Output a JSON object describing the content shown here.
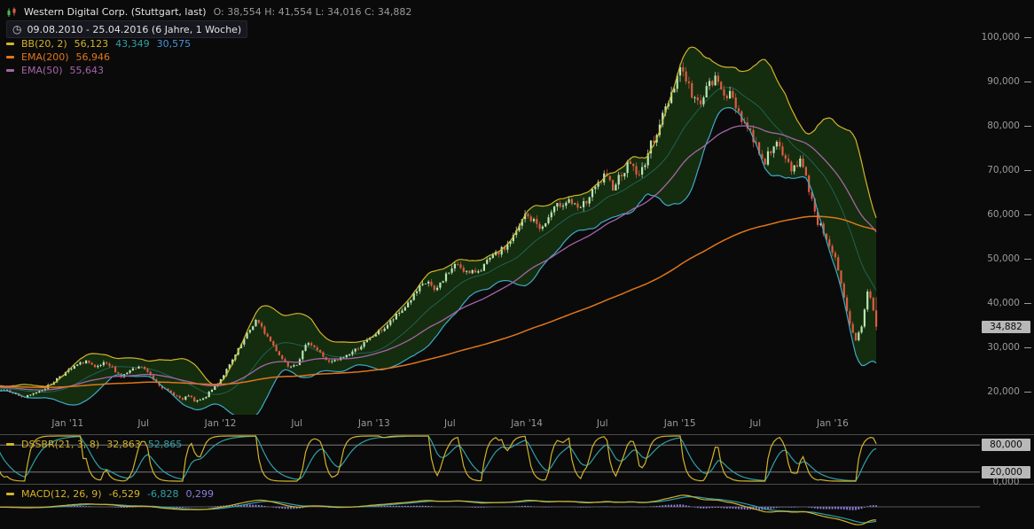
{
  "header": {
    "title": "Western Digital Corp. (Stuttgart, last)",
    "ohlc": "O: 38,554  H: 41,554  L: 34,016  C: 34,882",
    "range": "09.08.2010 - 25.04.2016 (6 Jahre, 1 Woche)"
  },
  "icons": {
    "clock": "◷"
  },
  "legend": {
    "bb": {
      "label": "BB(20, 2)",
      "upper": "56,123",
      "middle": "43,349",
      "lower": "30,575"
    },
    "ema200": {
      "label": "EMA(200)",
      "value": "56,946"
    },
    "ema50": {
      "label": "EMA(50)",
      "value": "55,643"
    }
  },
  "panels": {
    "dssbr": {
      "label": "DSSBR(21, 3, 8)",
      "v1": "32,863",
      "v2": "52,865"
    },
    "macd": {
      "label": "MACD(12, 26, 9)",
      "v1": "-6,529",
      "v2": "-6,828",
      "v3": "0,299"
    }
  },
  "axes": {
    "price_badge": "34,882",
    "price_ticks": [
      {
        "label": "100,000",
        "value": 100
      },
      {
        "label": "90,000",
        "value": 90
      },
      {
        "label": "80,000",
        "value": 80
      },
      {
        "label": "70,000",
        "value": 70
      },
      {
        "label": "60,000",
        "value": 60
      },
      {
        "label": "50,000",
        "value": 50
      },
      {
        "label": "40,000",
        "value": 40
      },
      {
        "label": "30,000",
        "value": 30
      },
      {
        "label": "20,000",
        "value": 20
      }
    ],
    "time_ticks": [
      {
        "label": "Jan '11",
        "week": 20.7
      },
      {
        "label": "Jul",
        "week": 46.6
      },
      {
        "label": "Jan '12",
        "week": 72.9
      },
      {
        "label": "Jul",
        "week": 99.0
      },
      {
        "label": "Jan '13",
        "week": 125.4
      },
      {
        "label": "Jul",
        "week": 151.3
      },
      {
        "label": "Jan '14",
        "week": 177.6
      },
      {
        "label": "Jul",
        "week": 203.4
      },
      {
        "label": "Jan '15",
        "week": 229.9
      },
      {
        "label": "Jul",
        "week": 255.7
      },
      {
        "label": "Jan '16",
        "week": 282.1
      }
    ],
    "dssbr_levels": [
      {
        "label": "80,000",
        "value": 80,
        "boxed": true
      },
      {
        "label": "20,000",
        "value": 20,
        "boxed": true
      },
      {
        "label": "0,000",
        "value": 0,
        "boxed": false
      }
    ]
  },
  "colors": {
    "bg": "#0a0a0a",
    "text": "#e2e2e2",
    "muted": "#9a9a9a",
    "yellow": "#d2b32b",
    "teal": "#2fa0a8",
    "blue": "#4a93d6",
    "orange": "#e0761a",
    "purple": "#a565a8",
    "macd_hist": "#8d7ce0",
    "up": "#b7e6b4",
    "up_wick": "#cfe6cd",
    "down": "#dd5b44",
    "bb_fill": "#1e4a12",
    "lower_band": "#3fa9c9",
    "badge_bg": "#b8b8b8",
    "separator": "#4a4a4a"
  },
  "chart_data": {
    "type": "candlestick",
    "title": "Western Digital Corp. (Stuttgart, last)",
    "interval": "1 Woche",
    "start": "09.08.2010",
    "end": "25.04.2016",
    "weeks": 298,
    "price_axis": {
      "min": 15,
      "max": 107,
      "ticks": [
        100,
        90,
        80,
        70,
        60,
        50,
        40,
        30,
        20
      ]
    },
    "last_candle": {
      "open": 38.554,
      "high": 41.554,
      "low": 34.016,
      "close": 34.882
    },
    "indicators": {
      "bollinger": {
        "period": 20,
        "stddev": 2,
        "last_upper": 56.123,
        "last_middle": 43.349,
        "last_lower": 30.575
      },
      "ema200": {
        "period": 200,
        "last": 56.946
      },
      "ema50": {
        "period": 50,
        "last": 55.643
      },
      "dssbr": {
        "params": [
          21,
          3,
          8
        ],
        "last": [
          32.863,
          52.865
        ],
        "levels": [
          80,
          20,
          0
        ]
      },
      "macd": {
        "params": [
          12,
          26,
          9
        ],
        "last_macd": -6.529,
        "last_signal": -6.828,
        "last_hist": 0.299
      }
    },
    "weekly_close_anchors": [
      [
        0,
        20.6
      ],
      [
        2,
        20.0
      ],
      [
        4,
        19.3
      ],
      [
        6,
        18.9
      ],
      [
        8,
        19.4
      ],
      [
        10,
        20.1
      ],
      [
        12,
        20.7
      ],
      [
        15,
        21.9
      ],
      [
        18,
        23.8
      ],
      [
        21,
        24.9
      ],
      [
        24,
        26.2
      ],
      [
        27,
        27.2
      ],
      [
        30,
        25.4
      ],
      [
        33,
        26.5
      ],
      [
        36,
        25.6
      ],
      [
        39,
        23.6
      ],
      [
        42,
        24.8
      ],
      [
        46,
        25.9
      ],
      [
        50,
        23.1
      ],
      [
        54,
        20.6
      ],
      [
        57,
        19.6
      ],
      [
        60,
        18.3
      ],
      [
        62,
        19.4
      ],
      [
        64,
        17.9
      ],
      [
        67,
        18.5
      ],
      [
        70,
        20.6
      ],
      [
        73,
        23.1
      ],
      [
        76,
        26.1
      ],
      [
        79,
        29.6
      ],
      [
        82,
        33.1
      ],
      [
        85,
        36.3
      ],
      [
        88,
        33.6
      ],
      [
        91,
        30.6
      ],
      [
        94,
        27.6
      ],
      [
        96,
        26.1
      ],
      [
        99,
        26.6
      ],
      [
        103,
        31.6
      ],
      [
        106,
        29.6
      ],
      [
        110,
        26.7
      ],
      [
        113,
        27.3
      ],
      [
        116,
        28.4
      ],
      [
        120,
        30.1
      ],
      [
        123,
        31.6
      ],
      [
        126,
        33.3
      ],
      [
        129,
        34.6
      ],
      [
        132,
        36.6
      ],
      [
        135,
        38.6
      ],
      [
        138,
        41.1
      ],
      [
        141,
        43.6
      ],
      [
        144,
        45.1
      ],
      [
        146,
        42.6
      ],
      [
        150,
        46.6
      ],
      [
        154,
        49.1
      ],
      [
        158,
        46.6
      ],
      [
        162,
        48.1
      ],
      [
        166,
        50.6
      ],
      [
        170,
        52.6
      ],
      [
        174,
        56.1
      ],
      [
        177,
        60.1
      ],
      [
        180,
        58.6
      ],
      [
        183,
        57.1
      ],
      [
        186,
        60.6
      ],
      [
        189,
        62.6
      ],
      [
        192,
        63.6
      ],
      [
        195,
        61.1
      ],
      [
        198,
        63.1
      ],
      [
        201,
        66.1
      ],
      [
        204,
        68.6
      ],
      [
        207,
        66.6
      ],
      [
        210,
        69.6
      ],
      [
        213,
        72.1
      ],
      [
        216,
        68.6
      ],
      [
        219,
        74.1
      ],
      [
        222,
        79.1
      ],
      [
        225,
        84.1
      ],
      [
        228,
        89.6
      ],
      [
        230,
        93.6
      ],
      [
        232,
        91.1
      ],
      [
        234,
        87.1
      ],
      [
        236,
        85.1
      ],
      [
        239,
        88.6
      ],
      [
        242,
        90.6
      ],
      [
        245,
        88.1
      ],
      [
        248,
        86.1
      ],
      [
        251,
        82.1
      ],
      [
        254,
        78.6
      ],
      [
        257,
        74.6
      ],
      [
        259,
        72.1
      ],
      [
        262,
        76.6
      ],
      [
        265,
        73.6
      ],
      [
        268,
        70.6
      ],
      [
        271,
        72.6
      ],
      [
        274,
        66.1
      ],
      [
        277,
        58.6
      ],
      [
        280,
        55.1
      ],
      [
        283,
        50.1
      ],
      [
        286,
        41.1
      ],
      [
        288,
        35.1
      ],
      [
        290,
        31.6
      ],
      [
        292,
        35.1
      ],
      [
        294,
        42.6
      ],
      [
        295,
        41.6
      ],
      [
        296,
        38.554
      ],
      [
        297,
        34.882
      ]
    ]
  }
}
